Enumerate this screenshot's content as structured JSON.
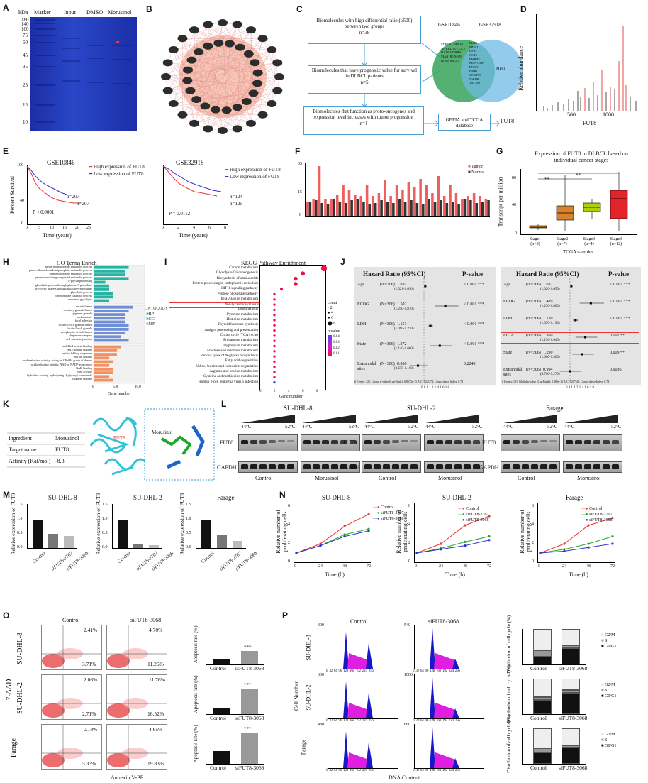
{
  "panels": {
    "A": "A",
    "B": "B",
    "C": "C",
    "D": "D",
    "E": "E",
    "F": "F",
    "G": "G",
    "H": "H",
    "I": "I",
    "J": "J",
    "K": "K",
    "L": "L",
    "M": "M",
    "N": "N",
    "O": "O",
    "P": "P"
  },
  "gel": {
    "lanes": [
      "Marker",
      "Input",
      "DMSO",
      "Morusinol"
    ],
    "unit": "kDa",
    "markers": [
      "180",
      "140",
      "100",
      "75",
      "60",
      "45",
      "35",
      "25",
      "15",
      "10"
    ]
  },
  "flowchart": {
    "step1": "Biomolecules with high differential ratio (≥500) between two groups",
    "step1n": "n=38",
    "step2": "Biomolecules that have prognostic value for survival in DLBCL patients",
    "step2n": "n=5",
    "step3": "Biomolecules that function as proto-oncogenes and expression level increases with tumor progression",
    "step3n": "n=1",
    "db": "GEPIA and TCGA database",
    "result": "FUT8",
    "venn_left": "GSE10846",
    "venn_right": "GSE32918",
    "venn_left_items": "SDF2 ALDH9A1 ANKRD13 CLIC1 DAD1A DHRS1 MAN1B1 MSN DOLP SRCC4",
    "venn_mid_items": "FUT8 MDH1 HPRT CCT6 EMPH2 FEIN GDP ENOA P4HB SWAP70 VWDB TALDO",
    "venn_right_items": "MPP1"
  },
  "ms": {
    "ylabel": "Relative abundance",
    "xlabel": "FUT8",
    "ticks": [
      "500",
      "1000"
    ]
  },
  "km1": {
    "title": "GSE10846",
    "ylabel": "Percent Survival",
    "xlabel": "Time (years)",
    "high": "High expression of FUT8",
    "low": "Low expression of FUT8",
    "p": "P < 0.0001",
    "nhigh": "n=207",
    "nlow": "n=207",
    "xticks": [
      "0",
      "5",
      "10",
      "15",
      "20",
      "25"
    ],
    "yticks": [
      "0",
      "20",
      "40",
      "60",
      "80",
      "100"
    ]
  },
  "km2": {
    "title": "GSE32918",
    "xlabel": "Time (years)",
    "high": "High expression of FUT8",
    "low": "Low expression of FUT8",
    "p": "P = 0.0112",
    "nhigh": "n=125",
    "nlow": "n=124",
    "xticks": [
      "0",
      "2",
      "4",
      "6",
      "8"
    ]
  },
  "panelF": {
    "legend_tumor": "Tumor",
    "legend_normal": "Normal",
    "yticks": [
      "0",
      "5",
      "10",
      "15",
      "20",
      "25",
      "30",
      "35"
    ]
  },
  "panelG": {
    "title": "Expression of FUT8 in DLBCL based on individual cancer stages",
    "ylabel": "Transcript per million",
    "xlabel": "TCGA samples",
    "stages": [
      "Stage1 (n=8)",
      "Stage2 (n=7)",
      "Stage3 (n=4)",
      "Stage3 (n=12)"
    ],
    "sig": "**",
    "yticks": [
      "0",
      "20",
      "40",
      "60",
      "80"
    ]
  },
  "panelH": {
    "title": "GO Terms Enrich",
    "xlabel": "Gene number",
    "legend_title": "ONTOLOGY",
    "legend": [
      "BP",
      "CC",
      "MF"
    ],
    "terms_bp": [
      "purine ribonucleotide metabolic process",
      "purine ribonucleoside triphosphate metabolic process",
      "purine nucleotide metabolic process",
      "purine-containing compound metabolic process",
      "N-glycan processing",
      "glycolytic process through glucose-6-phosphate",
      "glycolytic process through fructose-6-phosphate",
      "glycolytic process",
      "carbohydrate catabolic process",
      "canonical glycolysis"
    ],
    "terms_cc": [
      "vesicle lumen",
      "secretory granule lumen",
      "pigment granule",
      "melanosome",
      "focal adhesion",
      "ficolin-1-rich granule lumen",
      "ficolin-1-rich granule",
      "cytoplasmic vesicle lumen",
      "chaperone complex",
      "cell-substrate junction"
    ],
    "terms_mf": [
      "unfolded protein binding",
      "SH3 domain binding",
      "protein folding chaperone",
      "profilin binding",
      "oxidoreductase activity, acting on CH-OH group of donors",
      "oxidoreductase activity, NAD or NADP as acceptor",
      "NAD binding",
      "lyase activity",
      "hydrolase activity, hydrolyzing O-glycosyl compounds",
      "cadherin binding"
    ],
    "xticks": [
      "0",
      "2.5",
      "5.0",
      "7.5",
      "10.0",
      "12.5"
    ]
  },
  "panelI": {
    "title": "KEGG Pathway Enrichment",
    "xlabel": "Gene number",
    "pathways": [
      "Carbon metabolism",
      "Glycolysis/Gluconeogenesis",
      "Biosynthesis of amino acids",
      "Protein processing in endoplasmic reticulum",
      "HIF-1 signaling pathway",
      "Pentose phosphate pathway",
      "beta-Alanine metabolism",
      "N-Glycan biosynthesis",
      "Legionellosis",
      "Pyruvate metabolism",
      "Histidine metabolism",
      "Thyroid hormone synthesis",
      "Antigen processing and presentation",
      "Citrate cycle (TCA cycle)",
      "Propanoate metabolism",
      "Tryptophan metabolism",
      "Fructose and mannose metabolism",
      "Various types of N-glycan biosynthesis",
      "Fatty acid degradation",
      "Valine, leucine and isoleucine degradation",
      "Arginine and proline metabolism",
      "Cysteine and methionine metabolism",
      "Human T-cell leukemia virus 1 infection"
    ],
    "legend_count": "count",
    "counts": [
      "2",
      "4",
      "6",
      "8"
    ],
    "legend_p": "p.value",
    "pvals": [
      "0.04",
      "0.03",
      "0.02",
      "0.01"
    ],
    "xticks": [
      "0",
      "2",
      "4",
      "6",
      "8"
    ]
  },
  "panelJ": {
    "head_hr": "Hazard Ratio (95%CI)",
    "head_p": "P-value",
    "left": [
      {
        "v": "Age",
        "n": "(N=306)",
        "hr": "1.031",
        "ci": "(1.021-1.050)",
        "p": "< 0.001 ***"
      },
      {
        "v": "ECOG",
        "n": "(N=306)",
        "hr": "1.502",
        "ci": "(1.250-1.810)",
        "p": "< 0.001 ***"
      },
      {
        "v": "LDH",
        "n": "(N=306)",
        "hr": "1.151",
        "ci": "(1.090-1.210)",
        "p": "< 0.001 ***"
      },
      {
        "v": "State",
        "n": "(N=306)",
        "hr": "1.372",
        "ci": "(1.140-1.660)",
        "p": "< 0.001 ***"
      },
      {
        "v": "Extranodal sites",
        "n": "(N=306)",
        "hr": "0.858",
        "ci": "(0.670-1.100)",
        "p": "0.2243"
      }
    ],
    "right": [
      {
        "v": "Age",
        "n": "(N=306)",
        "hr": "1.032",
        "ci": "(1.020-1.050)",
        "p": "< 0.001 ***"
      },
      {
        "v": "ECOG",
        "n": "(N=306)",
        "hr": "1.489",
        "ci": "(1.230-1.800)",
        "p": "< 0.001 ***"
      },
      {
        "v": "LDH",
        "n": "(N=306)",
        "hr": "1.130",
        "ci": "(1.070-1.190)",
        "p": "< 0.001 ***"
      },
      {
        "v": "FUT8",
        "n": "(N=306)",
        "hr": "1.360",
        "ci": "(1.130-1.640)",
        "p": "0.001 **"
      },
      {
        "v": "State",
        "n": "(N=306)",
        "hr": "1.290",
        "ci": "(1.060-1.560)",
        "p": "0.009 **"
      },
      {
        "v": "Extranodal sites",
        "n": "(N=306)",
        "hr": "0.994",
        "ci": "(0.760-1.270)",
        "p": "0.9036"
      }
    ],
    "xticks": [
      "0.8",
      "1",
      "1.2",
      "1.4",
      "1.6",
      "1.8"
    ],
    "foot_left": "# Events: 121; Global p-value (Log-Rank): 6.8575e-15 AIC: 1221.74; Concordance Index: 0.72",
    "foot_right": "# Events: 121; Global p-value (Log-Rank): 2.986e-16 AIC: 1217.41; Concordance Index: 0.74"
  },
  "panelK": {
    "rows": [
      [
        "Ingredient",
        "Morusinol"
      ],
      [
        "Target name",
        "FUT8"
      ],
      [
        "Affinity (Kal/mol)",
        "-8.3"
      ]
    ],
    "lig": "Morusinol",
    "prot": "FUT8"
  },
  "panelL": {
    "cells": [
      "SU-DHL-8",
      "SU-DHL-2",
      "Farage"
    ],
    "t_low": "44°C",
    "t_high": "52°C",
    "fut8": "FUT8",
    "gapdh": "GAPDH",
    "control": "Control",
    "morusinol": "Morusinol"
  },
  "panelM": {
    "cells": [
      "SU-DHL-8",
      "SU-DHL-2",
      "Farage"
    ],
    "ylabel": "Relative expression of FUT8",
    "groups": [
      "Control",
      "siFUT8-2707",
      "siFUT8-3068"
    ],
    "yticks": [
      "0.0",
      "0.5",
      "1.0",
      "1.5"
    ]
  },
  "panelN": {
    "cells": [
      "SU-DHL-8",
      "SU-DHL-2",
      "Farage"
    ],
    "ylabel": "Relative number of proliferating cells",
    "xlabel": "Time (h)",
    "legend": [
      "Control",
      "siFUT8-2707",
      "siFUT8-3068"
    ],
    "xticks": [
      "0",
      "24",
      "48",
      "72"
    ],
    "yticks": [
      "0",
      "1",
      "2",
      "3",
      "4",
      "5",
      "6"
    ]
  },
  "panelO": {
    "col1": "Control",
    "col2": "siFUT8-3068",
    "rows": [
      "SU-DHL-8",
      "SU-DHL-2",
      "Farage"
    ],
    "ylab": "7-AAD",
    "xlab": "Annexin V-PE",
    "q": [
      [
        "2.41%",
        "3.71%",
        "4.70%",
        "11.26%"
      ],
      [
        "2.06%",
        "2.71%",
        "11.76%",
        "16.52%"
      ],
      [
        "0.18%",
        "5.33%",
        "4.65%",
        "19.83%"
      ]
    ],
    "bar_ylabel": "Apoptosis rate (%)",
    "bar_groups": [
      "Control",
      "siFUT8-3068"
    ],
    "sig": "***",
    "dec": [
      "10⁰",
      "10¹",
      "10²",
      "10³"
    ]
  },
  "panelP": {
    "col1": "Control",
    "col2": "siFUT8-3068",
    "rows": [
      "SU-DHL-8",
      "SU-DHL-2",
      "Farage"
    ],
    "ylab": "Cell Number",
    "xlab": "DNA Content",
    "xticks": [
      "0",
      "32",
      "64",
      "96",
      "128",
      "160",
      "192",
      "224",
      "256"
    ],
    "ymax": [
      [
        "300",
        "540"
      ],
      [
        "600",
        "1080"
      ],
      [
        "480",
        "660"
      ]
    ],
    "bar_ylabel": "Distribution of cell cycle (%)",
    "legend": [
      "G2/M",
      "S",
      "G0/G1"
    ],
    "groups": [
      "Control",
      "siFUT8-3068"
    ]
  }
}
